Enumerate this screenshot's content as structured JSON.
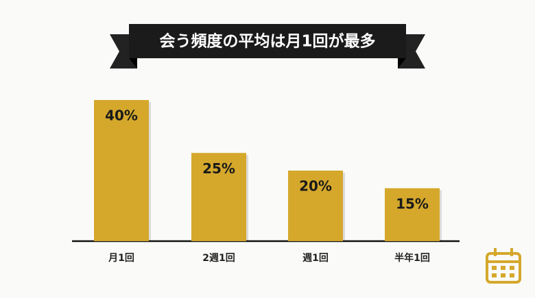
{
  "chart_data": {
    "type": "bar",
    "title": "会う頻度の平均は月1回が最多",
    "categories": [
      "月1回",
      "2週1回",
      "週1回",
      "半年1回"
    ],
    "values": [
      40,
      25,
      20,
      15
    ],
    "value_labels": [
      "40%",
      "25%",
      "20%",
      "15%"
    ],
    "color": "#d5a82c"
  }
}
